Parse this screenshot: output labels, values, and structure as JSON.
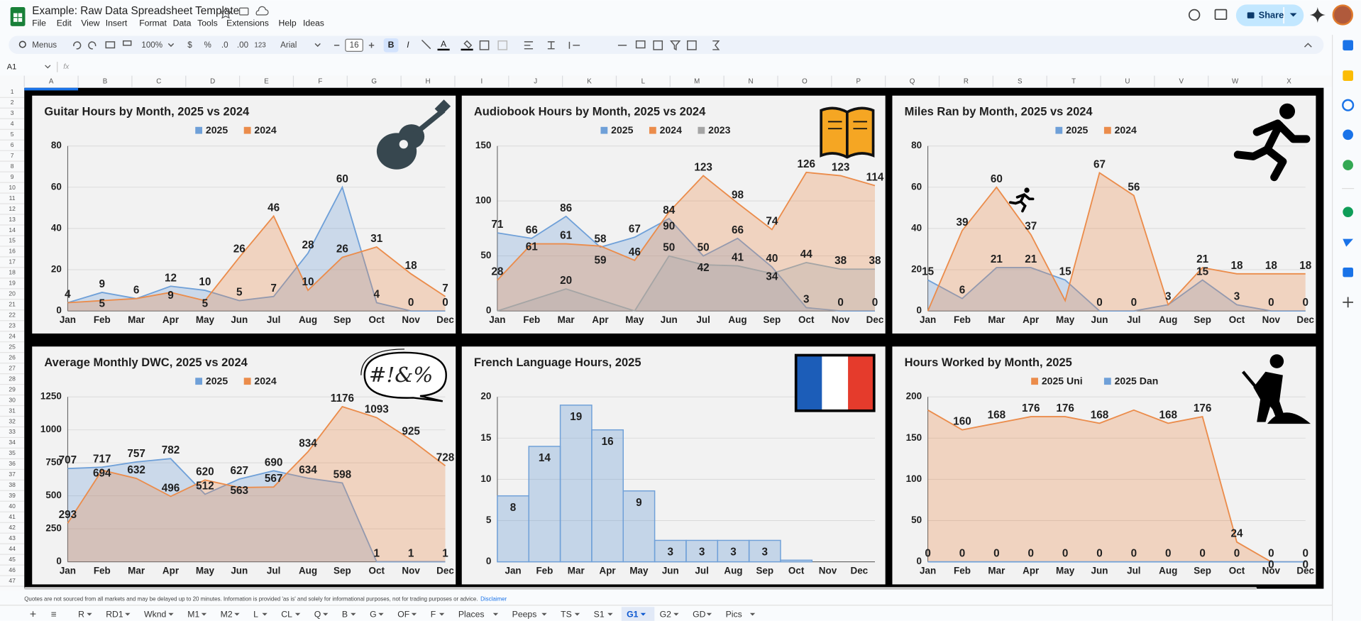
{
  "app": {
    "title": "Example: Raw Data Spreadsheet Template",
    "menu": [
      "File",
      "Edit",
      "View",
      "Insert",
      "Format",
      "Data",
      "Tools",
      "Extensions",
      "Help",
      "Ideas"
    ],
    "share": "Share"
  },
  "toolbar": {
    "search": "Menus",
    "zoom": "100%",
    "currency": "$",
    "percent": "%",
    "decrease_decimal": ".0",
    "increase_decimal": ".00",
    "number_format": "123",
    "font": "Arial",
    "font_size": "16"
  },
  "formula_bar": {
    "cell": "A1",
    "fx": "fx"
  },
  "columns": [
    "A",
    "B",
    "C",
    "D",
    "E",
    "F",
    "G",
    "H",
    "I",
    "J",
    "K",
    "L",
    "M",
    "N",
    "O",
    "P",
    "Q",
    "R",
    "S",
    "T",
    "U",
    "V",
    "W",
    "X"
  ],
  "rows": [
    1,
    2,
    3,
    4,
    5,
    6,
    7,
    8,
    9,
    10,
    11,
    12,
    13,
    14,
    15,
    16,
    17,
    18,
    19,
    20,
    21,
    22,
    23,
    24,
    25,
    26,
    27,
    28,
    29,
    30,
    31,
    32,
    33,
    34,
    35,
    36,
    37,
    38,
    39,
    40,
    41,
    42,
    43,
    44,
    45,
    46,
    47
  ],
  "chart_data": [
    {
      "type": "area",
      "title": "Guitar Hours by Month, 2025 vs 2024",
      "categories": [
        "Jan",
        "Feb",
        "Mar",
        "Apr",
        "May",
        "Jun",
        "Jul",
        "Aug",
        "Sep",
        "Oct",
        "Nov",
        "Dec"
      ],
      "series": [
        {
          "name": "2025",
          "color": "#6fa0d8",
          "values": [
            4,
            9,
            6,
            12,
            10,
            5,
            7,
            28,
            60,
            4,
            0,
            0
          ]
        },
        {
          "name": "2024",
          "color": "#eb8c4b",
          "values": [
            4,
            5,
            6,
            9,
            5,
            26,
            46,
            10,
            26,
            31,
            18,
            7
          ],
          "value_labels": [
            null,
            "5",
            null,
            "9",
            "5",
            "26",
            "46",
            "10",
            "26",
            "31",
            "18",
            "7"
          ]
        }
      ],
      "ylim": [
        0,
        80
      ],
      "yticks": [
        0,
        20,
        40,
        60,
        80
      ],
      "grid": true,
      "legend": "top"
    },
    {
      "type": "area",
      "title": "Audiobook Hours by Month, 2025 vs 2024",
      "categories": [
        "Jan",
        "Feb",
        "Mar",
        "Apr",
        "May",
        "Jun",
        "Jul",
        "Aug",
        "Sep",
        "Oct",
        "Nov",
        "Dec"
      ],
      "series": [
        {
          "name": "2025",
          "color": "#6fa0d8",
          "values": [
            71,
            66,
            86,
            58,
            67,
            84,
            50,
            66,
            40,
            3,
            0,
            0
          ]
        },
        {
          "name": "2024",
          "color": "#eb8c4b",
          "values": [
            28,
            61,
            61,
            59,
            46,
            90,
            123,
            98,
            74,
            126,
            123,
            114
          ]
        },
        {
          "name": "2023",
          "color": "#a5a5a5",
          "values": [
            0,
            10,
            20,
            10,
            0,
            50,
            42,
            41,
            34,
            44,
            38,
            38
          ],
          "value_labels": [
            null,
            null,
            "20",
            null,
            null,
            "50",
            "42",
            "41",
            "34",
            "44",
            "38",
            "38"
          ]
        }
      ],
      "ylim": [
        0,
        150
      ],
      "yticks": [
        0,
        50,
        100,
        150
      ],
      "grid": true,
      "legend": "top"
    },
    {
      "type": "area",
      "title": "Miles Ran by Month, 2025 vs 2024",
      "categories": [
        "Jan",
        "Feb",
        "Mar",
        "Apr",
        "May",
        "Jun",
        "Jul",
        "Aug",
        "Sep",
        "Oct",
        "Nov",
        "Dec"
      ],
      "series": [
        {
          "name": "2025",
          "color": "#6fa0d8",
          "values": [
            15,
            6,
            21,
            21,
            15,
            0,
            0,
            3,
            15,
            3,
            0,
            0
          ]
        },
        {
          "name": "2024",
          "color": "#eb8c4b",
          "values": [
            0,
            39,
            60,
            37,
            5,
            67,
            56,
            3,
            21,
            18,
            18,
            18
          ],
          "value_labels": [
            null,
            "39",
            "60",
            "37",
            null,
            "67",
            "56",
            null,
            "21",
            "18",
            "18",
            "18"
          ]
        }
      ],
      "ylim": [
        0,
        80
      ],
      "yticks": [
        0,
        20,
        40,
        60,
        80
      ],
      "grid": true,
      "legend": "top"
    },
    {
      "type": "area",
      "title": "Average Monthly DWC, 2025 vs 2024",
      "categories": [
        "Jan",
        "Feb",
        "Mar",
        "Apr",
        "May",
        "Jun",
        "Jul",
        "Aug",
        "Sep",
        "Oct",
        "Nov",
        "Dec"
      ],
      "series": [
        {
          "name": "2025",
          "color": "#6fa0d8",
          "values": [
            707,
            717,
            757,
            782,
            512,
            627,
            690,
            634,
            598,
            1,
            1,
            1
          ]
        },
        {
          "name": "2024",
          "color": "#eb8c4b",
          "values": [
            293,
            694,
            632,
            496,
            620,
            563,
            567,
            834,
            1176,
            1093,
            925,
            728
          ]
        }
      ],
      "ylim": [
        0,
        1250
      ],
      "yticks": [
        0,
        250,
        500,
        750,
        1000,
        1250
      ],
      "grid": true,
      "legend": "top"
    },
    {
      "type": "step-area",
      "title": "French Language Hours, 2025",
      "categories": [
        "Jan",
        "Feb",
        "Mar",
        "Apr",
        "May",
        "Jun",
        "Jul",
        "Aug",
        "Sep",
        "Oct",
        "Nov",
        "Dec"
      ],
      "values": [
        8,
        14,
        19,
        16,
        8.6,
        2.6,
        2.6,
        2.6,
        2.6,
        0.2,
        0,
        0
      ],
      "value_labels": [
        "8",
        "14",
        "19",
        "16",
        "9",
        "3",
        "3",
        "3",
        "3",
        null,
        null,
        null
      ],
      "color": "#6fa0d8",
      "ylim": [
        0,
        20
      ],
      "yticks": [
        0,
        5,
        10,
        15,
        20
      ],
      "grid": true
    },
    {
      "type": "area",
      "title": "Hours Worked by Month, 2025",
      "categories": [
        "Jan",
        "Feb",
        "Mar",
        "Apr",
        "May",
        "Jun",
        "Jul",
        "Aug",
        "Sep",
        "Oct",
        "Nov",
        "Dec"
      ],
      "series": [
        {
          "name": "2025 Uni",
          "color": "#eb8c4b",
          "values": [
            184,
            160,
            168,
            176,
            176,
            168,
            184,
            168,
            176,
            24,
            0,
            0
          ],
          "value_labels": [
            null,
            "160",
            "168",
            "176",
            "176",
            "168",
            null,
            "168",
            "176",
            "24",
            "0",
            "0"
          ]
        },
        {
          "name": "2025 Dan",
          "color": "#6fa0d8",
          "values": [
            0,
            0,
            0,
            0,
            0,
            0,
            0,
            0,
            0,
            0,
            0,
            0
          ]
        }
      ],
      "ylim": [
        0,
        200
      ],
      "yticks": [
        0,
        50,
        100,
        150,
        200
      ],
      "grid": true,
      "legend": "top"
    }
  ],
  "bubble_text": "#!&%",
  "footer": {
    "disclaimer": "Quotes are not sourced from all markets and may be delayed up to 20 minutes. Information is provided 'as is' and solely for informational purposes, not for trading purposes or advice.",
    "link": "Disclaimer"
  },
  "tabs": {
    "add": "+",
    "list": "≡",
    "sheets": [
      "R",
      "RD1",
      "Wknd",
      "M1",
      "M2",
      "L",
      "CL",
      "Q",
      "B",
      "G",
      "OF",
      "F",
      "Places",
      "Peeps",
      "TS",
      "S1",
      "G1",
      "G2",
      "GD",
      "Pics"
    ],
    "active": 16
  }
}
